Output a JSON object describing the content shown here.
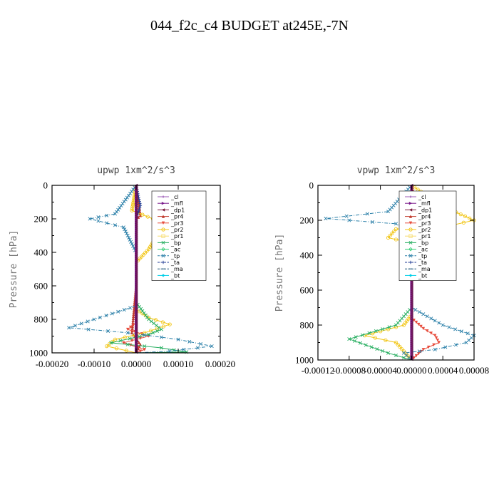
{
  "title": "044_f2c_c4  BUDGET at245E,-7N",
  "legend": [
    "_cl",
    "_mfl",
    "_dp1",
    "_pr4",
    "_pr3",
    "_pr2",
    "_pr1",
    "_bp",
    "_ac",
    "_tp",
    "_ta",
    "_ma",
    "_bt"
  ],
  "colors": {
    "_cl": "#9b59b6",
    "_mfl": "#7a1b8c",
    "_dp1": "#7a1b3c",
    "_pr4": "#c0392b",
    "_pr3": "#e74c3c",
    "_pr2": "#f1c40f",
    "_pr1": "#f7dc6f",
    "_bp": "#27ae60",
    "_ac": "#2ecc71",
    "_tp": "#2a7fa8",
    "_ta": "#1f3a93",
    "_ma": "#1a5276",
    "_bt": "#00cfe8"
  },
  "chart_data": [
    {
      "type": "line",
      "title": "upwp   1xm^2/s^3",
      "ylabel": "Pressure [hPa]",
      "xlabel": "",
      "xlim": [
        -0.0002,
        0.0002
      ],
      "ylim": [
        1000,
        0
      ],
      "xticks": [
        "-0.00020",
        "-0.00010",
        "0.00000",
        "0.00010",
        "0.00020"
      ],
      "yticks": [
        "0",
        "200",
        "400",
        "600",
        "800",
        "1000"
      ],
      "legend_position": "top-right",
      "series": [
        {
          "name": "_cl",
          "x": [
            0,
            0,
            0,
            0,
            0,
            0,
            0
          ],
          "y": [
            0,
            200,
            400,
            600,
            800,
            900,
            1000
          ]
        },
        {
          "name": "_mfl",
          "x": [
            0,
            0,
            0,
            0,
            0,
            0,
            0
          ],
          "y": [
            0,
            200,
            400,
            600,
            800,
            900,
            1000
          ]
        },
        {
          "name": "_dp1",
          "x": [
            0,
            0,
            0,
            0,
            0,
            0,
            0
          ],
          "y": [
            0,
            200,
            400,
            600,
            800,
            900,
            1000
          ]
        },
        {
          "name": "_pr4",
          "x": [
            0,
            1e-05,
            0,
            0,
            -1e-05,
            1e-05,
            0
          ],
          "y": [
            0,
            180,
            200,
            600,
            880,
            950,
            1000
          ]
        },
        {
          "name": "_pr3",
          "x": [
            0,
            0,
            0,
            -2e-05,
            3e-05,
            -3e-05,
            2e-05,
            0
          ],
          "y": [
            0,
            400,
            820,
            860,
            900,
            940,
            980,
            1000
          ]
        },
        {
          "name": "_pr2",
          "x": [
            0,
            -1e-05,
            4e-05,
            5e-05,
            3e-05,
            0,
            0,
            3e-05,
            8e-05,
            2e-05,
            -5e-05,
            -7e-05,
            0
          ],
          "y": [
            0,
            150,
            200,
            300,
            380,
            460,
            740,
            790,
            830,
            880,
            920,
            960,
            1000
          ]
        },
        {
          "name": "_pr1",
          "x": [
            0,
            0,
            0,
            0,
            0,
            0
          ],
          "y": [
            0,
            200,
            400,
            600,
            800,
            1000
          ]
        },
        {
          "name": "_bp",
          "x": [
            0,
            0,
            3e-05,
            6e-05,
            3e-05,
            -6e-05,
            6e-05,
            0.00012,
            0
          ],
          "y": [
            0,
            700,
            800,
            860,
            890,
            940,
            970,
            995,
            1000
          ]
        },
        {
          "name": "_ac",
          "x": [
            0,
            0,
            0,
            0,
            0,
            0
          ],
          "y": [
            0,
            200,
            400,
            600,
            800,
            1000
          ]
        },
        {
          "name": "_tp",
          "x": [
            0,
            -5e-05,
            -0.00011,
            -3e-05,
            -2e-05,
            0,
            0,
            -0.0001,
            -0.00016,
            -2e-05,
            0.0001,
            0.00018,
            8e-05,
            0
          ],
          "y": [
            0,
            170,
            200,
            250,
            300,
            400,
            720,
            800,
            850,
            880,
            920,
            960,
            990,
            1000
          ]
        },
        {
          "name": "_ta",
          "x": [
            0,
            1e-05,
            0,
            0,
            0
          ],
          "y": [
            0,
            120,
            200,
            600,
            1000
          ]
        },
        {
          "name": "_ma",
          "x": [
            0,
            0,
            0,
            0
          ],
          "y": [
            0,
            300,
            700,
            1000
          ]
        },
        {
          "name": "_bt",
          "x": [
            0,
            0,
            0,
            0,
            0
          ],
          "y": [
            0,
            250,
            500,
            750,
            1000
          ]
        }
      ]
    },
    {
      "type": "line",
      "title": "vpwp   1xm^2/s^3",
      "ylabel": "Pressure [hPa]",
      "xlabel": "",
      "xlim": [
        -0.00012,
        8e-05
      ],
      "ylim": [
        1000,
        0
      ],
      "xticks": [
        "-0.00012",
        "-0.00008",
        "-0.00004",
        "0.00000",
        "0.00004",
        "0.00008"
      ],
      "yticks": [
        "0",
        "200",
        "400",
        "600",
        "800",
        "1000"
      ],
      "legend_position": "top-right",
      "series": [
        {
          "name": "_cl",
          "x": [
            0,
            0,
            0,
            0,
            0,
            0,
            0
          ],
          "y": [
            0,
            200,
            400,
            600,
            800,
            900,
            1000
          ]
        },
        {
          "name": "_mfl",
          "x": [
            0,
            0,
            0,
            0,
            0,
            0,
            0
          ],
          "y": [
            0,
            200,
            400,
            600,
            800,
            900,
            1000
          ]
        },
        {
          "name": "_dp1",
          "x": [
            0,
            0,
            0,
            0,
            0,
            0,
            0
          ],
          "y": [
            0,
            200,
            400,
            600,
            800,
            900,
            1000
          ]
        },
        {
          "name": "_pr4",
          "x": [
            0,
            5e-06,
            0,
            0,
            0,
            0
          ],
          "y": [
            0,
            200,
            300,
            600,
            900,
            1000
          ]
        },
        {
          "name": "_pr3",
          "x": [
            0,
            8e-06,
            0,
            0,
            1.5e-05,
            3e-05,
            3.5e-05,
            1.5e-05,
            0
          ],
          "y": [
            0,
            200,
            260,
            760,
            820,
            860,
            900,
            940,
            1000
          ]
        },
        {
          "name": "_pr2",
          "x": [
            0,
            4e-05,
            8e-05,
            4e-05,
            -2e-05,
            -3e-05,
            0,
            0,
            -1e-05,
            -6e-05,
            -2e-05,
            0
          ],
          "y": [
            0,
            120,
            200,
            240,
            250,
            300,
            330,
            740,
            800,
            860,
            900,
            1000
          ]
        },
        {
          "name": "_pr1",
          "x": [
            0,
            0,
            0,
            0,
            0,
            0
          ],
          "y": [
            0,
            200,
            400,
            600,
            800,
            1000
          ]
        },
        {
          "name": "_bp",
          "x": [
            0,
            0,
            -2e-05,
            -8e-05,
            -3e-05,
            0
          ],
          "y": [
            0,
            700,
            800,
            880,
            960,
            1000
          ]
        },
        {
          "name": "_ac",
          "x": [
            0,
            0,
            0,
            0,
            0,
            0
          ],
          "y": [
            0,
            200,
            400,
            600,
            800,
            1000
          ]
        },
        {
          "name": "_tp",
          "x": [
            0,
            -3e-05,
            -0.00011,
            -2e-05,
            0,
            0,
            4e-05,
            8e-05,
            7e-05,
            3e-05,
            -1e-05,
            0
          ],
          "y": [
            0,
            150,
            190,
            220,
            260,
            700,
            800,
            860,
            900,
            940,
            960,
            1000
          ]
        },
        {
          "name": "_ta",
          "x": [
            0,
            0,
            0,
            0,
            0
          ],
          "y": [
            0,
            200,
            400,
            600,
            1000
          ]
        },
        {
          "name": "_ma",
          "x": [
            0,
            0,
            0,
            0
          ],
          "y": [
            0,
            300,
            700,
            1000
          ]
        },
        {
          "name": "_bt",
          "x": [
            0,
            0,
            0,
            0,
            0
          ],
          "y": [
            0,
            250,
            500,
            750,
            1000
          ]
        }
      ]
    }
  ]
}
